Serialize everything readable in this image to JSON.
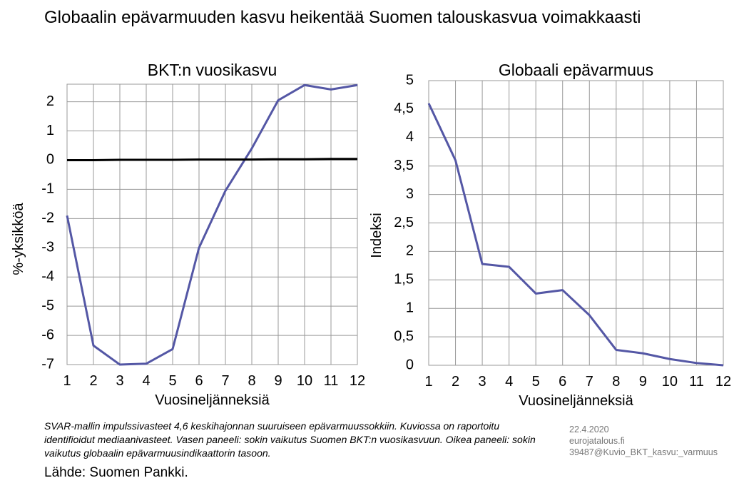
{
  "title": "Globaalin epävarmuuden kasvu heikentää Suomen talouskasvua voimakkaasti",
  "footnote": "SVAR-mallin impulssivasteet 4,6 keskihajonnan suuruiseen epävarmuussokkiin. Kuviossa on raportoitu identifioidut mediaanivasteet. Vasen paneeli: sokin vaikutus Suomen BKT:n vuosikasvuun. Oikea paneeli: sokin vaikutus globaalin epävarmuusindikaattorin tasoon.",
  "source": "Lähde: Suomen Pankki.",
  "meta": {
    "date": "22.4.2020",
    "site": "eurojatalous.fi",
    "file": "39487@Kuvio_BKT_kasvu:_varmuus"
  },
  "chart_data": [
    {
      "type": "line",
      "title": "BKT:n vuosikasvu",
      "x_label": "Vuosineljänneksiä",
      "y_label": "%-yksikköä",
      "x": [
        1,
        2,
        3,
        4,
        5,
        6,
        7,
        8,
        9,
        10,
        11,
        12
      ],
      "series": [
        {
          "color": "#5457a5",
          "values": [
            -1.9,
            -6.35,
            -7.0,
            -6.97,
            -6.47,
            -3.0,
            -1.05,
            0.4,
            2.05,
            2.57,
            2.42,
            2.57
          ]
        },
        {
          "color": "#000000",
          "values": [
            0,
            0,
            0.01,
            0.01,
            0.01,
            0.02,
            0.02,
            0.02,
            0.03,
            0.03,
            0.04,
            0.04
          ]
        }
      ],
      "xlim": [
        1,
        12
      ],
      "xticks": [
        1,
        2,
        3,
        4,
        5,
        6,
        7,
        8,
        9,
        10,
        11,
        12
      ],
      "ylim": [
        -7,
        2.6
      ],
      "yticks": [
        -7,
        -6,
        -5,
        -4,
        -3,
        -2,
        -1,
        0,
        1,
        2
      ],
      "grid": true
    },
    {
      "type": "line",
      "title": "Globaali epävarmuus",
      "x_label": "Vuosineljänneksiä",
      "y_label": "Indeksi",
      "x": [
        1,
        2,
        3,
        4,
        5,
        6,
        7,
        8,
        9,
        10,
        11,
        12
      ],
      "series": [
        {
          "color": "#5457a5",
          "values": [
            4.6,
            3.6,
            1.78,
            1.73,
            1.26,
            1.32,
            0.88,
            0.27,
            0.21,
            0.11,
            0.04,
            0.0
          ]
        }
      ],
      "xlim": [
        1,
        12
      ],
      "xticks": [
        1,
        2,
        3,
        4,
        5,
        6,
        7,
        8,
        9,
        10,
        11,
        12
      ],
      "ylim": [
        0,
        5
      ],
      "yticks": [
        0,
        {
          "value": 0.5,
          "label": "0,5"
        },
        1,
        {
          "value": 1.5,
          "label": "1,5"
        },
        2,
        {
          "value": 2.5,
          "label": "2,5"
        },
        3,
        {
          "value": 3.5,
          "label": "3,5"
        },
        4,
        {
          "value": 4.5,
          "label": "4,5"
        },
        5
      ],
      "grid": true
    }
  ]
}
